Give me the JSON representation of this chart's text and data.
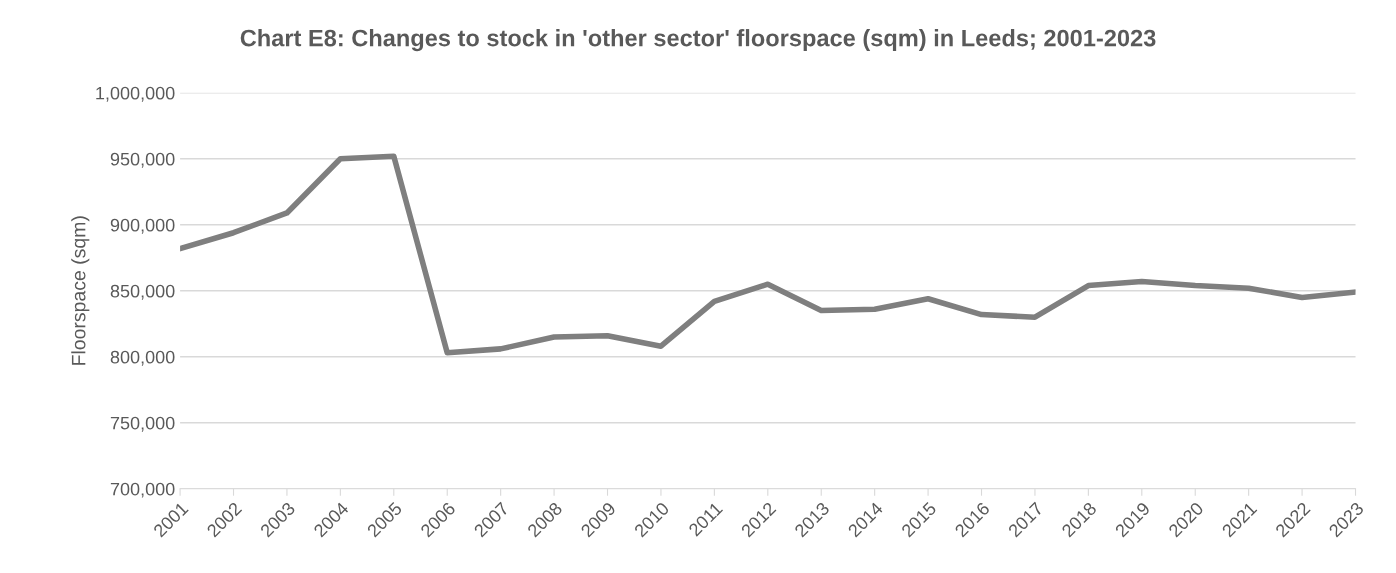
{
  "chart_data": {
    "type": "line",
    "title": "Chart E8: Changes to stock in 'other sector' floorspace (sqm) in Leeds; 2001-2023",
    "ylabel": "Floorspace (sqm)",
    "categories": [
      "2001",
      "2002",
      "2003",
      "2004",
      "2005",
      "2006",
      "2007",
      "2008",
      "2009",
      "2010",
      "2011",
      "2012",
      "2013",
      "2014",
      "2015",
      "2016",
      "2017",
      "2018",
      "2019",
      "2020",
      "2021",
      "2022",
      "2023"
    ],
    "series": [
      {
        "color": "#7f7f7f",
        "values": [
          882000,
          894000,
          909000,
          950000,
          952000,
          803000,
          806000,
          815000,
          816000,
          808000,
          842000,
          855000,
          835000,
          836000,
          844000,
          832000,
          830000,
          854000,
          857000,
          854000,
          852000,
          845000,
          849000
        ]
      }
    ],
    "ylim": [
      700000,
      1000000
    ],
    "yticks": [
      {
        "value": 700000,
        "label": "700,000"
      },
      {
        "value": 750000,
        "label": "750,000"
      },
      {
        "value": 800000,
        "label": "800,000"
      },
      {
        "value": 850000,
        "label": "850,000"
      },
      {
        "value": 900000,
        "label": "900,000"
      },
      {
        "value": 950000,
        "label": "950,000"
      },
      {
        "value": 1000000,
        "label": "1,000,000"
      }
    ],
    "grid": "y",
    "marker": "none",
    "line_style": "solid",
    "legend": false
  }
}
